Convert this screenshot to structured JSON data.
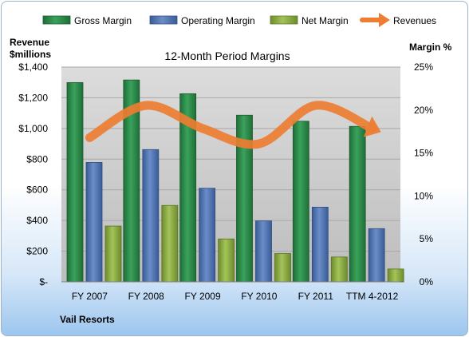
{
  "chart_data": {
    "type": "bar",
    "title": "12-Month Period Margins",
    "company": "Vail Resorts",
    "left_axis": {
      "label_line1": "Revenue",
      "label_line2": "$millions",
      "ylim": [
        0,
        1400
      ],
      "ticks": [
        0,
        200,
        400,
        600,
        800,
        1000,
        1200,
        1400
      ],
      "tick_labels": [
        "$-",
        "$200",
        "$400",
        "$600",
        "$800",
        "$1,000",
        "$1,200",
        "$1,400"
      ]
    },
    "right_axis": {
      "label": "Margin %",
      "ylim": [
        0,
        25
      ],
      "ticks": [
        0,
        5,
        10,
        15,
        20,
        25
      ],
      "tick_labels": [
        "0%",
        "5%",
        "10%",
        "15%",
        "20%",
        "25%"
      ]
    },
    "categories": [
      "FY 2007",
      "FY 2008",
      "FY 2009",
      "FY 2010",
      "FY 2011",
      "TTM 4-2012"
    ],
    "series": [
      {
        "name": "Gross Margin",
        "axis": "right",
        "color": "#2e8b4b",
        "values": [
          23.2,
          23.5,
          21.9,
          19.4,
          18.7,
          18.1
        ]
      },
      {
        "name": "Operating Margin",
        "axis": "right",
        "color": "#4f74b3",
        "values": [
          13.9,
          15.4,
          10.9,
          7.1,
          8.7,
          6.2
        ]
      },
      {
        "name": "Net Margin",
        "axis": "right",
        "color": "#86a83c",
        "values": [
          6.5,
          8.9,
          5.0,
          3.3,
          2.9,
          1.5
        ]
      },
      {
        "name": "Revenues",
        "axis": "left",
        "type": "line",
        "color": "#ed7d31",
        "values": [
          940,
          1150,
          1000,
          900,
          1150,
          1000
        ]
      }
    ],
    "legend_position": "top",
    "grid": true
  }
}
